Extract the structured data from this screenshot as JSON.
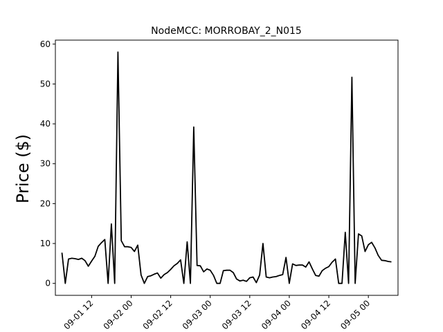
{
  "chart_data": {
    "type": "line",
    "title": "NodeMCC: MORROBAY_2_N015",
    "xlabel": "",
    "ylabel": "Price ($)",
    "ylim": [
      -3,
      61
    ],
    "xlim": [
      "2019-09-01 01:00",
      "2019-09-05 09:00"
    ],
    "x_tick_labels": [
      "09-01 12",
      "09-02 00",
      "09-02 12",
      "09-03 00",
      "09-03 12",
      "09-04 00",
      "09-04 12",
      "09-05 00"
    ],
    "x_tick_values": [
      "2019-09-01 12:00",
      "2019-09-02 00:00",
      "2019-09-02 12:00",
      "2019-09-03 00:00",
      "2019-09-03 12:00",
      "2019-09-04 00:00",
      "2019-09-04 12:00",
      "2019-09-05 00:00"
    ],
    "y_ticks": [
      0,
      10,
      20,
      30,
      40,
      50,
      60
    ],
    "grid": false,
    "line_color": "#000000",
    "series": [
      {
        "x": [
          "2019-09-01 03:00",
          "2019-09-01 04:00",
          "2019-09-01 05:00",
          "2019-09-01 06:00",
          "2019-09-01 07:00",
          "2019-09-01 08:00",
          "2019-09-01 09:00",
          "2019-09-01 10:00",
          "2019-09-01 11:00",
          "2019-09-01 12:00",
          "2019-09-01 13:00",
          "2019-09-01 14:00",
          "2019-09-01 15:00",
          "2019-09-01 16:00",
          "2019-09-01 17:00",
          "2019-09-01 18:00",
          "2019-09-01 19:00",
          "2019-09-01 20:00",
          "2019-09-01 21:00",
          "2019-09-01 22:00",
          "2019-09-01 23:00",
          "2019-09-02 00:00",
          "2019-09-02 01:00",
          "2019-09-02 02:00",
          "2019-09-02 03:00",
          "2019-09-02 04:00",
          "2019-09-02 05:00",
          "2019-09-02 06:00",
          "2019-09-02 07:00",
          "2019-09-02 08:00",
          "2019-09-02 09:00",
          "2019-09-02 10:00",
          "2019-09-02 11:00",
          "2019-09-02 12:00",
          "2019-09-02 13:00",
          "2019-09-02 14:00",
          "2019-09-02 15:00",
          "2019-09-02 16:00",
          "2019-09-02 17:00",
          "2019-09-02 18:00",
          "2019-09-02 19:00",
          "2019-09-02 20:00",
          "2019-09-02 21:00",
          "2019-09-02 22:00",
          "2019-09-02 23:00",
          "2019-09-03 00:00",
          "2019-09-03 01:00",
          "2019-09-03 02:00",
          "2019-09-03 03:00",
          "2019-09-03 04:00",
          "2019-09-03 05:00",
          "2019-09-03 06:00",
          "2019-09-03 07:00",
          "2019-09-03 08:00",
          "2019-09-03 09:00",
          "2019-09-03 10:00",
          "2019-09-03 11:00",
          "2019-09-03 12:00",
          "2019-09-03 13:00",
          "2019-09-03 14:00",
          "2019-09-03 15:00",
          "2019-09-03 16:00",
          "2019-09-03 17:00",
          "2019-09-03 18:00",
          "2019-09-03 19:00",
          "2019-09-03 20:00",
          "2019-09-03 21:00",
          "2019-09-03 22:00",
          "2019-09-03 23:00",
          "2019-09-04 00:00",
          "2019-09-04 01:00",
          "2019-09-04 02:00",
          "2019-09-04 03:00",
          "2019-09-04 04:00",
          "2019-09-04 05:00",
          "2019-09-04 06:00",
          "2019-09-04 07:00",
          "2019-09-04 08:00",
          "2019-09-04 09:00",
          "2019-09-04 10:00",
          "2019-09-04 11:00",
          "2019-09-04 12:00",
          "2019-09-04 13:00",
          "2019-09-04 14:00",
          "2019-09-04 15:00",
          "2019-09-04 16:00",
          "2019-09-04 17:00",
          "2019-09-04 18:00",
          "2019-09-04 19:00",
          "2019-09-04 20:00",
          "2019-09-04 21:00",
          "2019-09-04 22:00",
          "2019-09-04 23:00",
          "2019-09-05 00:00",
          "2019-09-05 01:00",
          "2019-09-05 02:00",
          "2019-09-05 03:00",
          "2019-09-05 04:00",
          "2019-09-05 05:00",
          "2019-09-05 06:00",
          "2019-09-05 07:00"
        ],
        "values": [
          7.7,
          0.0,
          6.1,
          6.3,
          6.2,
          6.0,
          6.3,
          5.7,
          4.3,
          5.6,
          6.8,
          9.3,
          10.2,
          11.0,
          0.0,
          14.9,
          0.0,
          58.0,
          10.7,
          9.2,
          9.2,
          9.0,
          8.0,
          9.6,
          2.1,
          0.0,
          1.7,
          1.9,
          2.3,
          2.6,
          1.3,
          2.2,
          2.7,
          3.5,
          4.4,
          5.0,
          5.9,
          0.0,
          10.4,
          0.0,
          39.2,
          4.5,
          4.4,
          2.9,
          3.6,
          3.3,
          2.0,
          0.0,
          0.0,
          3.2,
          3.3,
          3.3,
          2.7,
          1.1,
          0.6,
          0.8,
          0.5,
          1.4,
          1.6,
          0.2,
          2.1,
          10.0,
          1.6,
          1.4,
          1.6,
          1.7,
          2.0,
          2.2,
          6.5,
          0.0,
          4.9,
          4.5,
          4.6,
          4.6,
          4.1,
          5.4,
          3.6,
          2.0,
          1.8,
          3.2,
          3.8,
          4.2,
          5.3,
          6.1,
          0.0,
          0.0,
          12.8,
          0.0,
          51.7,
          0.0,
          12.4,
          11.9,
          8.0,
          9.7,
          10.3,
          8.9,
          7.0,
          5.8,
          5.7,
          5.5,
          5.4
        ]
      }
    ]
  }
}
